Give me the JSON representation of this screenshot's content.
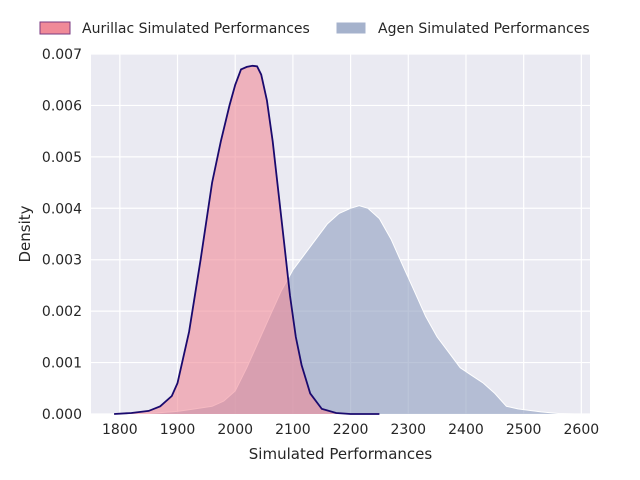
{
  "chart_data": {
    "type": "area",
    "title": "",
    "xlabel": "Simulated Performances",
    "ylabel": "Density",
    "xlim": [
      1750,
      2615
    ],
    "ylim": [
      0,
      0.007
    ],
    "x_ticks": [
      "1800",
      "1900",
      "2000",
      "2100",
      "2200",
      "2300",
      "2400",
      "2500",
      "2600"
    ],
    "y_ticks": [
      "0.000",
      "0.001",
      "0.002",
      "0.003",
      "0.004",
      "0.005",
      "0.006",
      "0.007"
    ],
    "grid": true,
    "legend_position": "top",
    "series": [
      {
        "name": "Aurillac Simulated Performances",
        "fill": "#f08a98",
        "edge": "#1a0a6e",
        "x": [
          1790,
          1820,
          1850,
          1870,
          1890,
          1900,
          1920,
          1940,
          1960,
          1975,
          1990,
          2000,
          2010,
          2020,
          2030,
          2038,
          2045,
          2055,
          2065,
          2075,
          2085,
          2095,
          2105,
          2115,
          2130,
          2150,
          2175,
          2200,
          2250
        ],
        "y": [
          0.0,
          2e-05,
          6e-05,
          0.00015,
          0.00035,
          0.0006,
          0.0016,
          0.003,
          0.0045,
          0.0053,
          0.006,
          0.0064,
          0.0067,
          0.00675,
          0.00677,
          0.00676,
          0.0066,
          0.0061,
          0.0053,
          0.0043,
          0.0033,
          0.0023,
          0.0015,
          0.00095,
          0.0004,
          0.0001,
          2e-05,
          0.0,
          0.0
        ]
      },
      {
        "name": "Agen Simulated Performances",
        "fill": "#8f9fbf",
        "edge": "#ffffff",
        "x": [
          1800,
          1850,
          1900,
          1930,
          1960,
          1980,
          2000,
          2020,
          2040,
          2060,
          2080,
          2100,
          2120,
          2140,
          2160,
          2180,
          2200,
          2215,
          2230,
          2250,
          2270,
          2290,
          2310,
          2330,
          2350,
          2370,
          2390,
          2410,
          2430,
          2450,
          2470,
          2490,
          2510,
          2530,
          2560,
          2590
        ],
        "y": [
          0.0,
          1e-05,
          5e-05,
          0.0001,
          0.00015,
          0.00025,
          0.00045,
          0.0009,
          0.0014,
          0.0019,
          0.0024,
          0.0028,
          0.0031,
          0.0034,
          0.0037,
          0.0039,
          0.004,
          0.00405,
          0.004,
          0.0038,
          0.0034,
          0.0029,
          0.0024,
          0.0019,
          0.0015,
          0.0012,
          0.0009,
          0.00075,
          0.0006,
          0.0004,
          0.00015,
          0.0001,
          7e-05,
          4e-05,
          1e-05,
          0.0
        ]
      }
    ]
  }
}
